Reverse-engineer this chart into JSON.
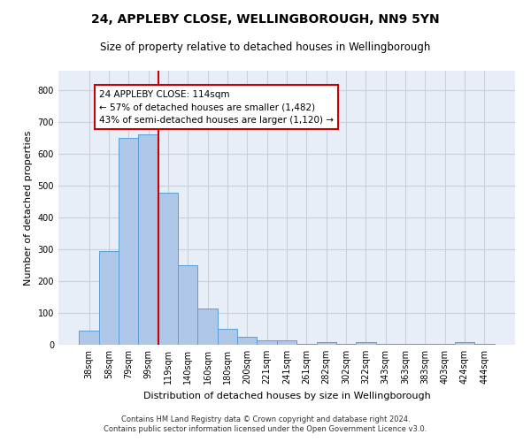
{
  "title1": "24, APPLEBY CLOSE, WELLINGBOROUGH, NN9 5YN",
  "title2": "Size of property relative to detached houses in Wellingborough",
  "xlabel": "Distribution of detached houses by size in Wellingborough",
  "ylabel": "Number of detached properties",
  "categories": [
    "38sqm",
    "58sqm",
    "79sqm",
    "99sqm",
    "119sqm",
    "140sqm",
    "160sqm",
    "180sqm",
    "200sqm",
    "221sqm",
    "241sqm",
    "261sqm",
    "282sqm",
    "302sqm",
    "322sqm",
    "343sqm",
    "363sqm",
    "383sqm",
    "403sqm",
    "424sqm",
    "444sqm"
  ],
  "values": [
    45,
    293,
    650,
    660,
    478,
    250,
    113,
    50,
    25,
    13,
    13,
    2,
    8,
    2,
    8,
    2,
    2,
    2,
    2,
    8,
    2
  ],
  "bar_color": "#aec6e8",
  "bar_edge_color": "#5a9fd4",
  "ref_line_color": "#cc0000",
  "ref_line_index": 3.5,
  "annotation_text": "24 APPLEBY CLOSE: 114sqm\n← 57% of detached houses are smaller (1,482)\n43% of semi-detached houses are larger (1,120) →",
  "annotation_box_color": "#ffffff",
  "annotation_box_edge_color": "#cc0000",
  "ylim": [
    0,
    860
  ],
  "yticks": [
    0,
    100,
    200,
    300,
    400,
    500,
    600,
    700,
    800
  ],
  "grid_color": "#c8d0dc",
  "bg_color": "#e8eef7",
  "footer1": "Contains HM Land Registry data © Crown copyright and database right 2024.",
  "footer2": "Contains public sector information licensed under the Open Government Licence v3.0.",
  "title_fontsize": 10,
  "subtitle_fontsize": 8.5,
  "tick_fontsize": 7,
  "ylabel_fontsize": 8,
  "xlabel_fontsize": 8,
  "annotation_fontsize": 7.5
}
